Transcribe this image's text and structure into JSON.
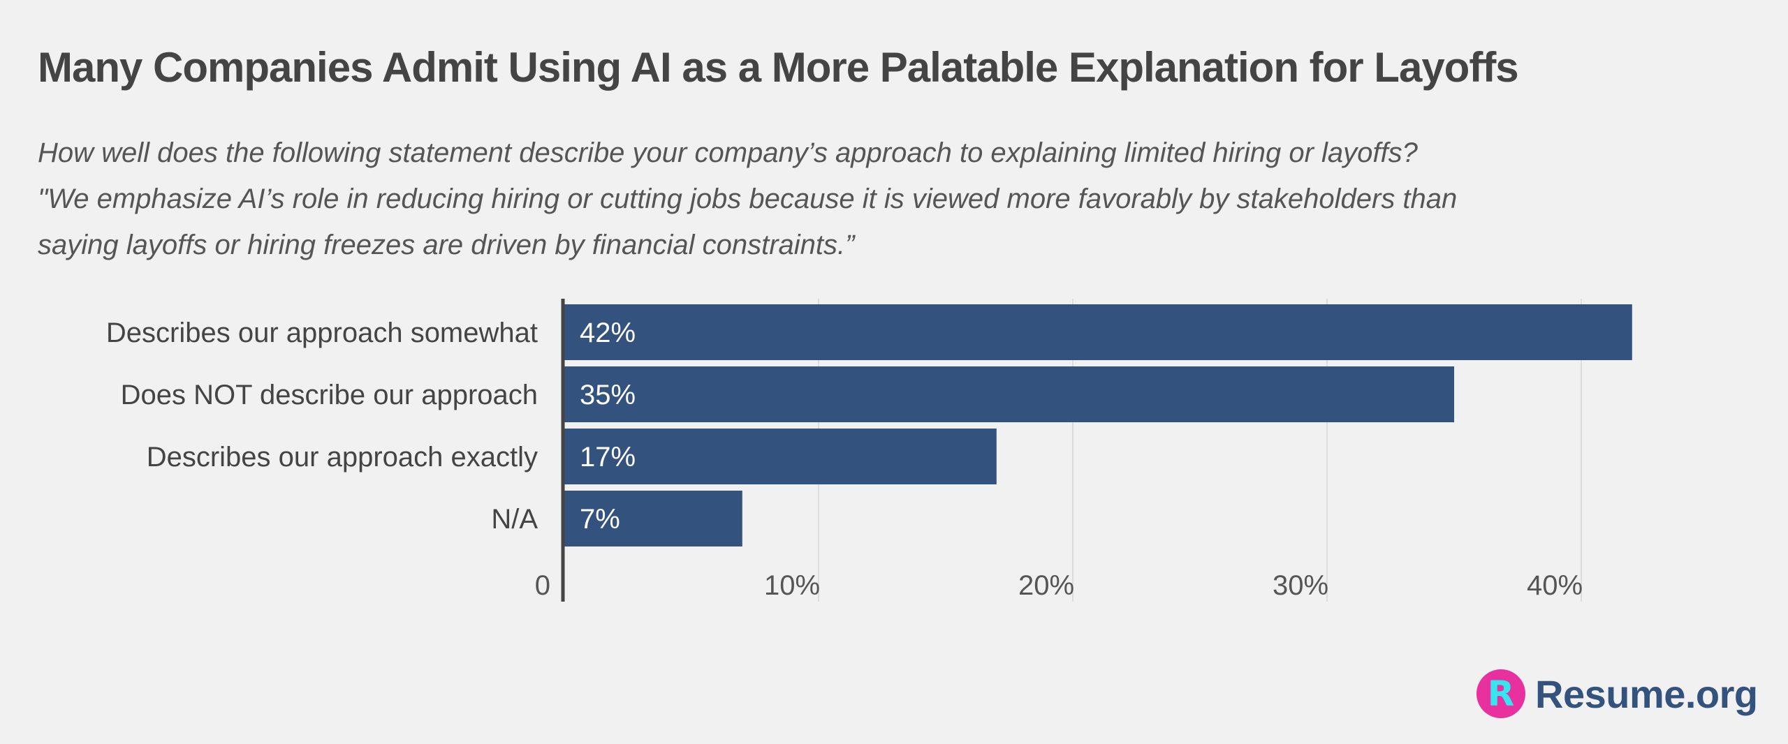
{
  "title": "Many Companies Admit Using AI as a More Palatable Explanation for Layoffs",
  "subtitle_lines": [
    "How well does the following statement describe your company’s approach to explaining limited hiring or layoffs?",
    "\"We emphasize AI’s role in reducing hiring or cutting jobs because it is viewed more favorably by stakeholders than",
    "saying layoffs or hiring freezes are driven by financial constraints.”"
  ],
  "brand": {
    "icon_letter": "R",
    "icon_name": "resume-logo-icon",
    "text": "Resume.org"
  },
  "colors": {
    "bar": "#34527e",
    "axis": "#444444",
    "grid": "#dddddd",
    "background": "#f1f1f1"
  },
  "chart_data": {
    "type": "bar",
    "orientation": "horizontal",
    "title": "Many Companies Admit Using AI as a More Palatable Explanation for Layoffs",
    "categories": [
      "Describes our approach somewhat",
      "Does NOT describe our approach",
      "Describes our approach exactly",
      "N/A"
    ],
    "values": [
      42,
      35,
      17,
      7
    ],
    "value_labels": [
      "42%",
      "35%",
      "17%",
      "7%"
    ],
    "xlim": [
      0,
      42
    ],
    "xticks": [
      0,
      10,
      20,
      30,
      40
    ],
    "xtick_labels": [
      "0",
      "10%",
      "20%",
      "30%",
      "40%"
    ],
    "grid": true,
    "xlabel": "",
    "ylabel": ""
  }
}
